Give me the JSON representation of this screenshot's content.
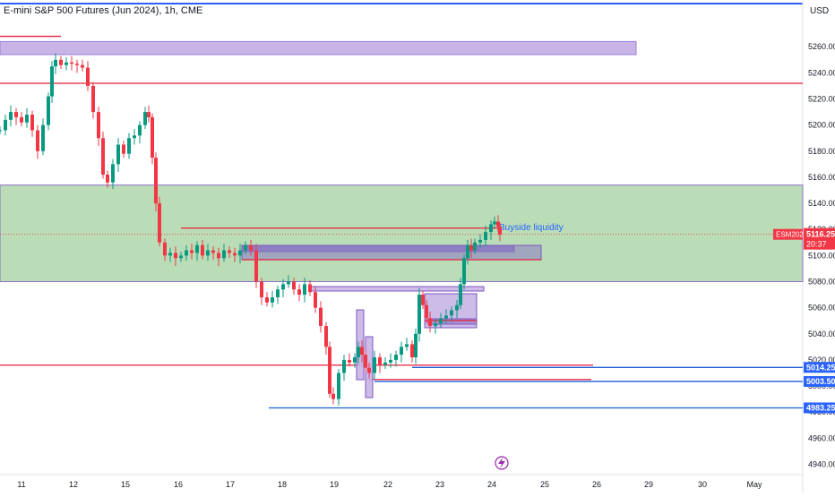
{
  "header": {
    "title": "E-mini S&P 500 Futures (Jun 2024), 1h, CME",
    "currency": "USD"
  },
  "colors": {
    "up": "#089981",
    "down": "#f23645",
    "zone_green": "#b3d9b0",
    "zone_purple": "#c8b4e6",
    "zone_purple_dark": "#8a78c2",
    "line_red": "#e91e3b",
    "line_blue": "#1e5fd6",
    "price_tag": "#f23645",
    "level_tag": "#2962ff"
  },
  "chart_data": {
    "type": "candlestick",
    "symbol": "ESM2024",
    "ylim": [
      4935,
      5275
    ],
    "y_ticks": [
      4940,
      4960,
      4980,
      5000,
      5020,
      5040,
      5060,
      5080,
      5100,
      5120,
      5140,
      5160,
      5180,
      5200,
      5220,
      5240,
      5260
    ],
    "x_ticks": [
      "11",
      "12",
      "15",
      "16",
      "17",
      "18",
      "19",
      "22",
      "23",
      "24",
      "25",
      "26",
      "29",
      "30",
      "May"
    ],
    "last_price": {
      "label": "ESM2024",
      "value": "5116.25",
      "countdown": "20:37"
    },
    "price_levels": [
      {
        "value": "5014.25",
        "color": "blue"
      },
      {
        "value": "5003.50",
        "color": "blue"
      },
      {
        "value": "4983.25",
        "color": "blue"
      }
    ],
    "annotations": [
      {
        "text": "Buyside liquidity"
      }
    ],
    "zones": [
      {
        "kind": "green",
        "from": 5080,
        "to": 5154
      },
      {
        "kind": "purple",
        "from": 5254,
        "to": 5264
      }
    ],
    "horizontal_lines": [
      {
        "color": "red",
        "value": 5232
      },
      {
        "color": "red",
        "value": 5268
      },
      {
        "color": "red",
        "value": 5121
      },
      {
        "color": "red",
        "value": 5016
      },
      {
        "color": "red",
        "value": 5005
      },
      {
        "color": "blue",
        "value": 5014.25
      },
      {
        "color": "blue",
        "value": 5003.5
      },
      {
        "color": "blue",
        "value": 4983.25
      }
    ],
    "close_path": [
      [
        0,
        5196
      ],
      [
        6,
        5204
      ],
      [
        12,
        5210
      ],
      [
        18,
        5206
      ],
      [
        24,
        5202
      ],
      [
        30,
        5208
      ],
      [
        36,
        5196
      ],
      [
        42,
        5180
      ],
      [
        48,
        5200
      ],
      [
        54,
        5222
      ],
      [
        58,
        5245
      ],
      [
        62,
        5250
      ],
      [
        68,
        5246
      ],
      [
        74,
        5248
      ],
      [
        80,
        5247
      ],
      [
        86,
        5246
      ],
      [
        92,
        5244
      ],
      [
        98,
        5230
      ],
      [
        104,
        5210
      ],
      [
        110,
        5190
      ],
      [
        115,
        5162
      ],
      [
        120,
        5156
      ],
      [
        126,
        5170
      ],
      [
        132,
        5185
      ],
      [
        138,
        5178
      ],
      [
        144,
        5190
      ],
      [
        150,
        5192
      ],
      [
        156,
        5200
      ],
      [
        162,
        5210
      ],
      [
        166,
        5206
      ],
      [
        170,
        5175
      ],
      [
        174,
        5140
      ],
      [
        178,
        5110
      ],
      [
        184,
        5100
      ],
      [
        190,
        5102
      ],
      [
        196,
        5098
      ],
      [
        202,
        5100
      ],
      [
        208,
        5104
      ],
      [
        214,
        5102
      ],
      [
        220,
        5108
      ],
      [
        226,
        5100
      ],
      [
        232,
        5104
      ],
      [
        238,
        5102
      ],
      [
        244,
        5098
      ],
      [
        250,
        5104
      ],
      [
        256,
        5102
      ],
      [
        262,
        5100
      ],
      [
        268,
        5104
      ],
      [
        274,
        5108
      ],
      [
        280,
        5104
      ],
      [
        286,
        5080
      ],
      [
        292,
        5068
      ],
      [
        298,
        5064
      ],
      [
        304,
        5068
      ],
      [
        310,
        5074
      ],
      [
        316,
        5078
      ],
      [
        322,
        5080
      ],
      [
        328,
        5074
      ],
      [
        334,
        5070
      ],
      [
        340,
        5078
      ],
      [
        346,
        5072
      ],
      [
        352,
        5060
      ],
      [
        358,
        5046
      ],
      [
        364,
        5030
      ],
      [
        368,
        4994
      ],
      [
        372,
        4990
      ],
      [
        378,
        5010
      ],
      [
        384,
        5020
      ],
      [
        390,
        5018
      ],
      [
        396,
        5022
      ],
      [
        400,
        5030
      ],
      [
        404,
        5024
      ],
      [
        408,
        5014
      ],
      [
        412,
        5010
      ],
      [
        418,
        5022
      ],
      [
        424,
        5016
      ],
      [
        430,
        5018
      ],
      [
        436,
        5020
      ],
      [
        442,
        5024
      ],
      [
        448,
        5030
      ],
      [
        454,
        5032
      ],
      [
        460,
        5022
      ],
      [
        464,
        5040
      ],
      [
        468,
        5070
      ],
      [
        472,
        5062
      ],
      [
        476,
        5052
      ],
      [
        480,
        5046
      ],
      [
        486,
        5048
      ],
      [
        492,
        5052
      ],
      [
        498,
        5054
      ],
      [
        504,
        5058
      ],
      [
        510,
        5062
      ],
      [
        514,
        5078
      ],
      [
        518,
        5098
      ],
      [
        522,
        5108
      ],
      [
        526,
        5104
      ],
      [
        530,
        5110
      ],
      [
        536,
        5112
      ],
      [
        542,
        5118
      ],
      [
        548,
        5124
      ],
      [
        552,
        5126
      ],
      [
        556,
        5122
      ],
      [
        558,
        5116
      ]
    ]
  },
  "footer_icon": "lightning-icon"
}
